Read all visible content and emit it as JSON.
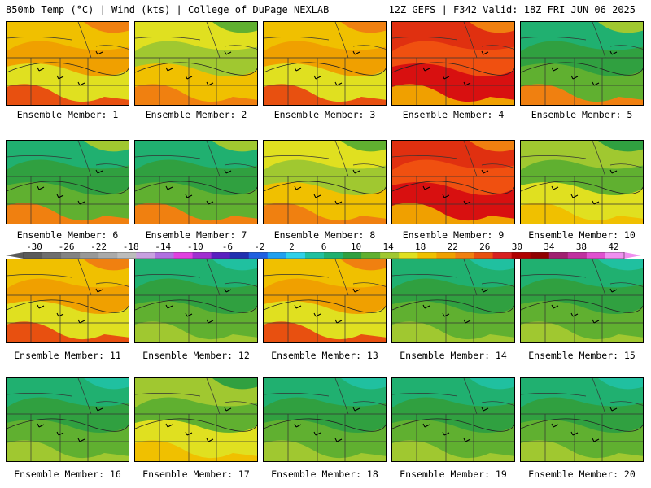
{
  "header": {
    "left": "850mb Temp (°C) | Wind (kts) | College of DuPage NEXLAB",
    "right": "12Z GEFS | F342 Valid: 18Z FRI JUN 06 2025"
  },
  "caption_prefix": "Ensemble Member:",
  "members": [
    {
      "number": "1",
      "palette": "warm"
    },
    {
      "number": "2",
      "palette": "mixed-warm"
    },
    {
      "number": "3",
      "palette": "warm"
    },
    {
      "number": "4",
      "palette": "hot"
    },
    {
      "number": "5",
      "palette": "cool-warm"
    },
    {
      "number": "6",
      "palette": "cool-warm"
    },
    {
      "number": "7",
      "palette": "cool-warm"
    },
    {
      "number": "8",
      "palette": "mixed-warm"
    },
    {
      "number": "9",
      "palette": "hot"
    },
    {
      "number": "10",
      "palette": "mixed"
    },
    {
      "number": "11",
      "palette": "warm"
    },
    {
      "number": "12",
      "palette": "cool"
    },
    {
      "number": "13",
      "palette": "warm"
    },
    {
      "number": "14",
      "palette": "cool"
    },
    {
      "number": "15",
      "palette": "cool"
    },
    {
      "number": "16",
      "palette": "cool"
    },
    {
      "number": "17",
      "palette": "mixed"
    },
    {
      "number": "18",
      "palette": "cool"
    },
    {
      "number": "19",
      "palette": "cool"
    },
    {
      "number": "20",
      "palette": "cool"
    }
  ],
  "color_scale": {
    "labels": [
      "-30",
      "-26",
      "-22",
      "-18",
      "-14",
      "-10",
      "-6",
      "-2",
      "2",
      "6",
      "10",
      "14",
      "18",
      "22",
      "26",
      "30",
      "34",
      "38",
      "42"
    ],
    "colors": [
      "#5a5a5a",
      "#6e6e6e",
      "#838383",
      "#989898",
      "#aaaaaa",
      "#bcbcbc",
      "#c8a0e0",
      "#b070e0",
      "#e040e0",
      "#a030d0",
      "#5a20c0",
      "#2030b0",
      "#2060e0",
      "#20a0f0",
      "#30d0e8",
      "#20c0a0",
      "#20b070",
      "#30a040",
      "#60b030",
      "#a0c830",
      "#e0e020",
      "#f0c000",
      "#f0a000",
      "#f08010",
      "#e85010",
      "#d82020",
      "#b00000",
      "#900000",
      "#a02070",
      "#c030a0",
      "#e050d0",
      "#f090f0"
    ]
  }
}
